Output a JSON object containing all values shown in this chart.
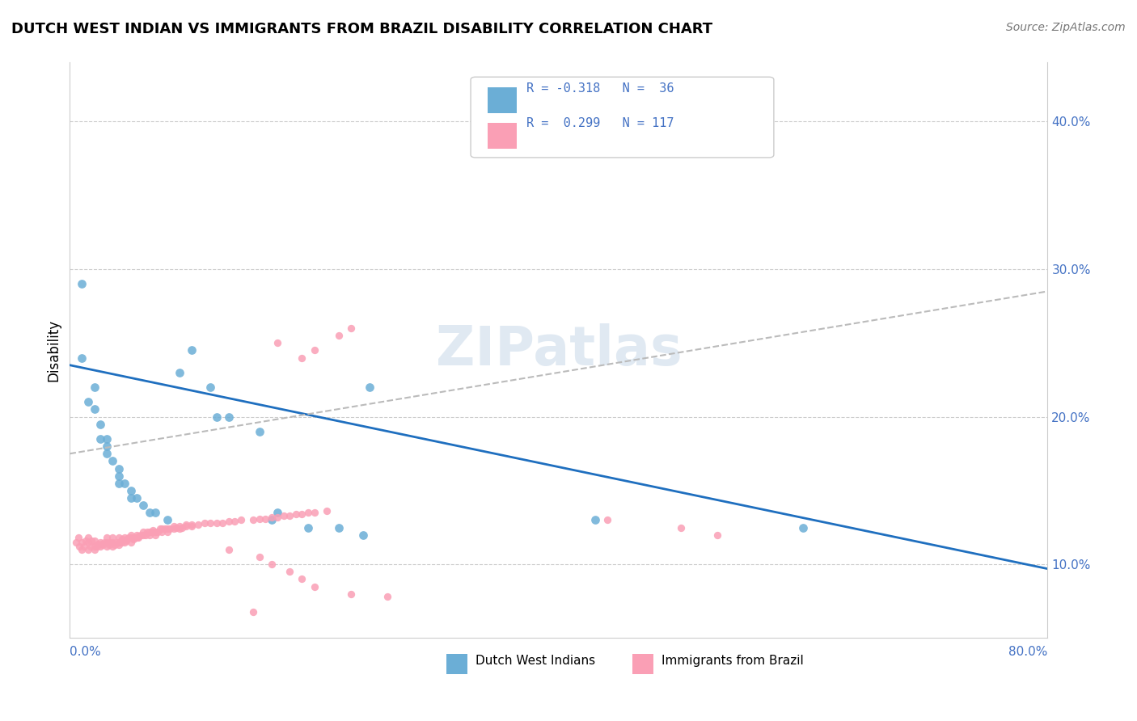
{
  "title": "DUTCH WEST INDIAN VS IMMIGRANTS FROM BRAZIL DISABILITY CORRELATION CHART",
  "source": "Source: ZipAtlas.com",
  "ylabel": "Disability",
  "color_blue": "#6baed6",
  "color_pink": "#fa9fb5",
  "color_trend_blue": "#1f6fbf",
  "color_trend_gray": "#bbbbbb",
  "watermark": "ZIPatlas",
  "label_dutch": "Dutch West Indians",
  "label_brazil": "Immigrants from Brazil",
  "legend_line1": "R = -0.318   N =  36",
  "legend_line2": "R =  0.299   N = 117",
  "xlim": [
    0.0,
    0.8
  ],
  "ylim": [
    0.05,
    0.44
  ],
  "yticks": [
    0.1,
    0.2,
    0.3,
    0.4
  ],
  "ytick_labels": [
    "10.0%",
    "20.0%",
    "30.0%",
    "40.0%"
  ],
  "blue_trend_x0": 0.0,
  "blue_trend_y0": 0.235,
  "blue_trend_x1": 0.8,
  "blue_trend_y1": 0.097,
  "pink_trend_x0": 0.0,
  "pink_trend_y0": 0.175,
  "pink_trend_x1": 0.8,
  "pink_trend_y1": 0.285,
  "blue_x": [
    0.01,
    0.015,
    0.02,
    0.025,
    0.025,
    0.03,
    0.03,
    0.035,
    0.04,
    0.04,
    0.045,
    0.05,
    0.055,
    0.06,
    0.065,
    0.07,
    0.08,
    0.09,
    0.1,
    0.115,
    0.13,
    0.155,
    0.17,
    0.195,
    0.22,
    0.245,
    0.02,
    0.03,
    0.04,
    0.05,
    0.12,
    0.165,
    0.43,
    0.6,
    0.01,
    0.24
  ],
  "blue_y": [
    0.29,
    0.21,
    0.205,
    0.195,
    0.185,
    0.18,
    0.175,
    0.17,
    0.165,
    0.16,
    0.155,
    0.15,
    0.145,
    0.14,
    0.135,
    0.135,
    0.13,
    0.23,
    0.245,
    0.22,
    0.2,
    0.19,
    0.135,
    0.125,
    0.125,
    0.22,
    0.22,
    0.185,
    0.155,
    0.145,
    0.2,
    0.13,
    0.13,
    0.125,
    0.24,
    0.12
  ],
  "pink_x": [
    0.005,
    0.007,
    0.008,
    0.01,
    0.01,
    0.012,
    0.013,
    0.015,
    0.015,
    0.015,
    0.017,
    0.018,
    0.02,
    0.02,
    0.02,
    0.022,
    0.023,
    0.025,
    0.025,
    0.026,
    0.027,
    0.028,
    0.03,
    0.03,
    0.03,
    0.032,
    0.033,
    0.035,
    0.035,
    0.035,
    0.037,
    0.038,
    0.04,
    0.04,
    0.04,
    0.042,
    0.043,
    0.045,
    0.045,
    0.046,
    0.047,
    0.048,
    0.05,
    0.05,
    0.05,
    0.052,
    0.053,
    0.055,
    0.055,
    0.056,
    0.057,
    0.058,
    0.06,
    0.06,
    0.062,
    0.063,
    0.065,
    0.065,
    0.067,
    0.068,
    0.07,
    0.07,
    0.072,
    0.074,
    0.075,
    0.075,
    0.078,
    0.08,
    0.08,
    0.082,
    0.085,
    0.085,
    0.087,
    0.09,
    0.09,
    0.092,
    0.095,
    0.095,
    0.1,
    0.1,
    0.105,
    0.11,
    0.115,
    0.12,
    0.125,
    0.13,
    0.135,
    0.14,
    0.15,
    0.155,
    0.16,
    0.165,
    0.17,
    0.175,
    0.18,
    0.185,
    0.19,
    0.195,
    0.2,
    0.21,
    0.17,
    0.19,
    0.2,
    0.22,
    0.23,
    0.13,
    0.155,
    0.165,
    0.18,
    0.19,
    0.2,
    0.23,
    0.26,
    0.44,
    0.5,
    0.53,
    0.15
  ],
  "pink_y": [
    0.115,
    0.118,
    0.112,
    0.11,
    0.115,
    0.112,
    0.116,
    0.11,
    0.115,
    0.118,
    0.112,
    0.116,
    0.11,
    0.112,
    0.116,
    0.112,
    0.114,
    0.112,
    0.115,
    0.114,
    0.113,
    0.115,
    0.112,
    0.115,
    0.118,
    0.113,
    0.115,
    0.112,
    0.115,
    0.118,
    0.113,
    0.115,
    0.113,
    0.115,
    0.118,
    0.115,
    0.117,
    0.115,
    0.118,
    0.116,
    0.117,
    0.118,
    0.115,
    0.118,
    0.12,
    0.117,
    0.118,
    0.118,
    0.12,
    0.118,
    0.119,
    0.12,
    0.12,
    0.122,
    0.12,
    0.122,
    0.12,
    0.122,
    0.122,
    0.123,
    0.12,
    0.122,
    0.122,
    0.124,
    0.122,
    0.124,
    0.124,
    0.122,
    0.124,
    0.124,
    0.124,
    0.126,
    0.125,
    0.124,
    0.126,
    0.125,
    0.126,
    0.127,
    0.126,
    0.127,
    0.127,
    0.128,
    0.128,
    0.128,
    0.128,
    0.129,
    0.129,
    0.13,
    0.13,
    0.131,
    0.131,
    0.132,
    0.132,
    0.133,
    0.133,
    0.134,
    0.134,
    0.135,
    0.135,
    0.136,
    0.25,
    0.24,
    0.245,
    0.255,
    0.26,
    0.11,
    0.105,
    0.1,
    0.095,
    0.09,
    0.085,
    0.08,
    0.078,
    0.13,
    0.125,
    0.12,
    0.068
  ]
}
